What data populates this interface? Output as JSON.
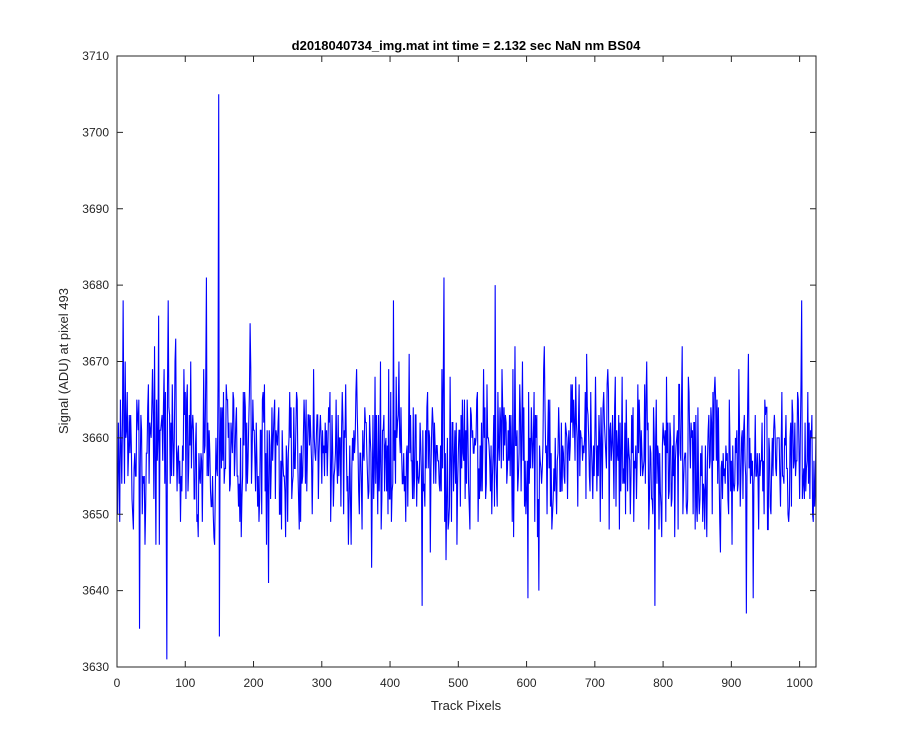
{
  "chart_data": {
    "type": "line",
    "title": "d2018040734_img.mat int time = 2.132 sec  NaN nm BS04",
    "xlabel": "Track Pixels",
    "ylabel": "Signal (ADU) at pixel 493",
    "xlim": [
      0,
      1024
    ],
    "ylim": [
      3630,
      3710
    ],
    "xticks": [
      0,
      100,
      200,
      300,
      400,
      500,
      600,
      700,
      800,
      900,
      1000
    ],
    "xtick_labels": [
      "0",
      "100",
      "200",
      "300",
      "400",
      "500",
      "600",
      "700",
      "800",
      "900",
      "1000"
    ],
    "yticks": [
      3630,
      3640,
      3650,
      3660,
      3670,
      3680,
      3690,
      3700,
      3710
    ],
    "ytick_labels": [
      "3630",
      "3640",
      "3650",
      "3660",
      "3670",
      "3680",
      "3690",
      "3700",
      "3710"
    ],
    "grid": false,
    "line_color": "#0000ff",
    "series": [
      {
        "name": "",
        "x_start": 1,
        "x_step": 8,
        "values": [
          3657,
          3664,
          3655,
          3663,
          3652,
          3660,
          3668,
          3649,
          3661,
          3656,
          3665,
          3654,
          3659,
          3662,
          3651,
          3658,
          3670,
          3646,
          3657,
          3661,
          3653,
          3664,
          3649,
          3659,
          3663,
          3655,
          3660,
          3652,
          3658,
          3666,
          3644,
          3659,
          3662,
          3650,
          3657,
          3664,
          3653,
          3660,
          3671,
          3648,
          3659,
          3662,
          3650,
          3662,
          3646,
          3665,
          3655,
          3661,
          3660,
          3652,
          3657,
          3669,
          3653,
          3665,
          3655,
          3660,
          3654,
          3661,
          3652,
          3669,
          3648,
          3666,
          3654,
          3659,
          3656,
          3662,
          3650,
          3662,
          3658,
          3647,
          3670,
          3657,
          3662,
          3652,
          3660,
          3668,
          3653,
          3657,
          3666,
          3648,
          3662,
          3657,
          3651,
          3664,
          3659,
          3655,
          3662,
          3653,
          3659,
          3664,
          3654,
          3661,
          3656,
          3659,
          3650,
          3661,
          3666,
          3654,
          3663,
          3655,
          3661,
          3652,
          3660,
          3657,
          3664,
          3655,
          3659,
          3652,
          3661,
          3666,
          3654,
          3659,
          3653,
          3662,
          3657,
          3660,
          3654,
          3659,
          3663,
          3655,
          3657,
          3661,
          3652,
          3659,
          3665,
          3656,
          3660,
          3654,
          3661
        ]
      }
    ],
    "spikes": [
      {
        "x": 9,
        "y": 3678
      },
      {
        "x": 33,
        "y": 3635
      },
      {
        "x": 61,
        "y": 3676
      },
      {
        "x": 73,
        "y": 3631
      },
      {
        "x": 75,
        "y": 3678
      },
      {
        "x": 86,
        "y": 3673
      },
      {
        "x": 131,
        "y": 3681
      },
      {
        "x": 149,
        "y": 3705
      },
      {
        "x": 150,
        "y": 3634
      },
      {
        "x": 195,
        "y": 3675
      },
      {
        "x": 222,
        "y": 3641
      },
      {
        "x": 373,
        "y": 3643
      },
      {
        "x": 405,
        "y": 3678
      },
      {
        "x": 447,
        "y": 3638
      },
      {
        "x": 479,
        "y": 3681
      },
      {
        "x": 554,
        "y": 3680
      },
      {
        "x": 602,
        "y": 3639
      },
      {
        "x": 618,
        "y": 3640
      },
      {
        "x": 788,
        "y": 3638
      },
      {
        "x": 922,
        "y": 3637
      },
      {
        "x": 932,
        "y": 3639
      },
      {
        "x": 1003,
        "y": 3678
      }
    ],
    "noise": {
      "seed": 20180407,
      "amplitude": 7,
      "mean": 3658,
      "count": 1024
    }
  }
}
